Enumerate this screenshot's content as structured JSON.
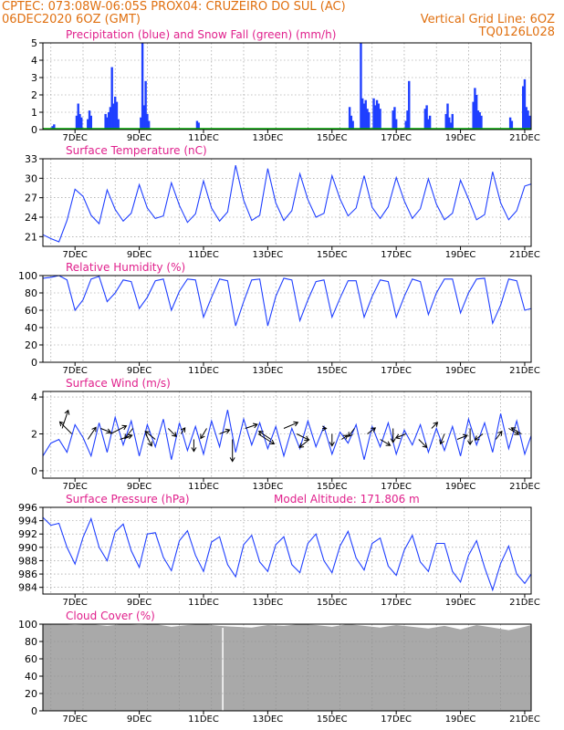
{
  "header": {
    "line1_left": "CPTEC:   073:08W-06:05S   PROX04: CRUZEIRO DO SUL (AC)",
    "line2_left": "06DEC2020 6OZ (GMT)",
    "line2_right": "Vertical Grid Line: 6OZ",
    "line3_right": "TQ0126L028"
  },
  "colors": {
    "series": "#1f3fff",
    "snow": "#00b000",
    "title": "#e0208c",
    "header": "#e07010",
    "cloud": "#a9a9a9",
    "grid": "#8c8c8c"
  },
  "x_ticks": [
    "7DEC",
    "9DEC",
    "11DEC",
    "13DEC",
    "15DEC",
    "17DEC",
    "19DEC",
    "21DEC"
  ],
  "chart_data": [
    {
      "id": "precip",
      "type": "bar",
      "title": "Precipitation (blue) and Snow Fall (green) (mm/h)",
      "ylim": [
        0,
        5
      ],
      "yticks": [
        0,
        1,
        2,
        3,
        4,
        5
      ],
      "x_unit": "days since 06DEC2020 00Z",
      "series": [
        {
          "name": "Precipitation",
          "x": [
            0.3,
            0.35,
            1.05,
            1.1,
            1.15,
            1.2,
            1.4,
            1.45,
            1.5,
            1.95,
            2.0,
            2.05,
            2.1,
            2.15,
            2.2,
            2.25,
            2.3,
            2.35,
            3.05,
            3.1,
            3.15,
            3.2,
            3.25,
            3.3,
            4.8,
            4.85,
            9.55,
            9.6,
            9.65,
            9.9,
            9.95,
            10.0,
            10.05,
            10.1,
            10.15,
            10.3,
            10.35,
            10.4,
            10.45,
            10.5,
            10.9,
            10.95,
            11.0,
            11.3,
            11.35,
            11.4,
            11.9,
            11.95,
            12.0,
            12.05,
            12.55,
            12.6,
            12.65,
            12.7,
            12.75,
            13.4,
            13.45,
            13.5,
            13.55,
            13.6,
            13.65,
            14.55,
            14.6,
            14.95,
            15.0,
            15.05,
            15.1,
            15.15
          ],
          "y": [
            0.2,
            0.3,
            0.8,
            1.5,
            0.9,
            0.7,
            0.6,
            1.1,
            0.8,
            0.9,
            0.7,
            1.0,
            1.3,
            3.6,
            1.5,
            1.9,
            1.6,
            0.6,
            0.7,
            5.0,
            1.4,
            2.8,
            0.9,
            0.5,
            0.5,
            0.4,
            1.3,
            0.8,
            0.5,
            5.0,
            1.8,
            1.5,
            1.7,
            1.2,
            1.0,
            1.8,
            1.4,
            1.7,
            1.5,
            1.2,
            1.1,
            1.3,
            0.6,
            0.5,
            1.1,
            2.8,
            1.2,
            1.4,
            0.6,
            0.8,
            0.9,
            1.5,
            0.7,
            0.4,
            0.9,
            1.6,
            2.4,
            2.0,
            1.1,
            1.0,
            0.8,
            0.7,
            0.5,
            2.5,
            2.9,
            1.3,
            1.1,
            0.8
          ]
        },
        {
          "name": "Snow Fall",
          "x": [
            0,
            15.2
          ],
          "y": [
            0,
            0
          ]
        }
      ]
    },
    {
      "id": "temp",
      "type": "line",
      "title": "Surface Temperature (nC)",
      "ylim": [
        19.5,
        33
      ],
      "yticks": [
        21,
        24,
        27,
        30,
        33
      ],
      "x_unit": "days since 06DEC2020 00Z",
      "series": [
        {
          "name": "Surface Temperature",
          "x": [
            0,
            0.25,
            0.5,
            0.75,
            1.0,
            1.25,
            1.5,
            1.75,
            2.0,
            2.25,
            2.5,
            2.75,
            3.0,
            3.25,
            3.5,
            3.75,
            4.0,
            4.25,
            4.5,
            4.75,
            5.0,
            5.25,
            5.5,
            5.75,
            6.0,
            6.25,
            6.5,
            6.75,
            7.0,
            7.25,
            7.5,
            7.75,
            8.0,
            8.25,
            8.5,
            8.75,
            9.0,
            9.25,
            9.5,
            9.75,
            10.0,
            10.25,
            10.5,
            10.75,
            11.0,
            11.25,
            11.5,
            11.75,
            12.0,
            12.25,
            12.5,
            12.75,
            13.0,
            13.25,
            13.5,
            13.75,
            14.0,
            14.25,
            14.5,
            14.75,
            15.0,
            15.2
          ],
          "y": [
            21.3,
            20.7,
            20.2,
            23.5,
            28.3,
            27.2,
            24.3,
            23.0,
            28.2,
            25.2,
            23.4,
            24.6,
            29.0,
            25.4,
            23.8,
            24.2,
            29.3,
            25.8,
            23.2,
            24.5,
            29.6,
            25.4,
            23.4,
            24.8,
            32.0,
            26.6,
            23.5,
            24.3,
            31.5,
            26.2,
            23.5,
            25.0,
            30.7,
            26.7,
            24.0,
            24.6,
            30.4,
            26.8,
            24.2,
            25.4,
            30.4,
            25.5,
            23.8,
            25.6,
            30.1,
            26.5,
            23.8,
            25.3,
            29.9,
            26.0,
            23.6,
            24.6,
            29.7,
            26.8,
            23.6,
            24.4,
            31.0,
            26.2,
            23.6,
            25.0,
            28.8,
            29.1
          ]
        }
      ]
    },
    {
      "id": "rh",
      "type": "line",
      "title": "Relative Humidity (%)",
      "ylim": [
        0,
        100
      ],
      "yticks": [
        0,
        20,
        40,
        60,
        80,
        100
      ],
      "x_unit": "days since 06DEC2020 00Z",
      "series": [
        {
          "name": "Relative Humidity",
          "x": [
            0,
            0.25,
            0.5,
            0.75,
            1.0,
            1.25,
            1.5,
            1.75,
            2.0,
            2.25,
            2.5,
            2.75,
            3.0,
            3.25,
            3.5,
            3.75,
            4.0,
            4.25,
            4.5,
            4.75,
            5.0,
            5.25,
            5.5,
            5.75,
            6.0,
            6.25,
            6.5,
            6.75,
            7.0,
            7.25,
            7.5,
            7.75,
            8.0,
            8.25,
            8.5,
            8.75,
            9.0,
            9.25,
            9.5,
            9.75,
            10.0,
            10.25,
            10.5,
            10.75,
            11.0,
            11.25,
            11.5,
            11.75,
            12.0,
            12.25,
            12.5,
            12.75,
            13.0,
            13.25,
            13.5,
            13.75,
            14.0,
            14.25,
            14.5,
            14.75,
            15.0,
            15.2
          ],
          "y": [
            97,
            98,
            100,
            95,
            60,
            72,
            96,
            99,
            70,
            80,
            95,
            93,
            62,
            75,
            94,
            96,
            60,
            82,
            96,
            95,
            52,
            75,
            96,
            94,
            42,
            70,
            95,
            96,
            42,
            76,
            97,
            95,
            48,
            72,
            93,
            95,
            52,
            74,
            94,
            94,
            52,
            76,
            95,
            93,
            52,
            76,
            96,
            93,
            55,
            80,
            96,
            96,
            57,
            80,
            96,
            97,
            45,
            66,
            96,
            94,
            60,
            62
          ]
        }
      ]
    },
    {
      "id": "wind",
      "type": "line",
      "title": "Surface Wind (m/s)",
      "ylim": [
        -0.4,
        4.3
      ],
      "yticks": [
        0,
        2,
        4
      ],
      "x_unit": "days since 06DEC2020 00Z",
      "series": [
        {
          "name": "Surface Wind",
          "x": [
            0,
            0.25,
            0.5,
            0.75,
            1.0,
            1.25,
            1.5,
            1.75,
            2.0,
            2.25,
            2.5,
            2.75,
            3.0,
            3.25,
            3.5,
            3.75,
            4.0,
            4.25,
            4.5,
            4.75,
            5.0,
            5.25,
            5.5,
            5.75,
            6.0,
            6.25,
            6.5,
            6.75,
            7.0,
            7.25,
            7.5,
            7.75,
            8.0,
            8.25,
            8.5,
            8.75,
            9.0,
            9.25,
            9.5,
            9.75,
            10.0,
            10.25,
            10.5,
            10.75,
            11.0,
            11.25,
            11.5,
            11.75,
            12.0,
            12.25,
            12.5,
            12.75,
            13.0,
            13.25,
            13.5,
            13.75,
            14.0,
            14.25,
            14.5,
            14.75,
            15.0,
            15.2
          ],
          "y": [
            0.8,
            1.5,
            1.7,
            1.0,
            2.5,
            1.8,
            0.8,
            2.6,
            1.0,
            2.9,
            1.4,
            2.7,
            0.8,
            2.5,
            1.3,
            2.8,
            0.6,
            2.6,
            1.1,
            2.4,
            0.9,
            2.7,
            1.3,
            3.3,
            1.0,
            2.8,
            1.4,
            2.6,
            1.2,
            2.4,
            0.8,
            2.3,
            1.2,
            2.7,
            1.3,
            2.4,
            0.9,
            2.1,
            1.5,
            2.5,
            0.6,
            2.4,
            1.3,
            2.6,
            0.9,
            2.2,
            1.4,
            2.5,
            1.0,
            2.3,
            1.1,
            2.4,
            0.8,
            2.8,
            1.4,
            2.6,
            1.0,
            3.1,
            1.2,
            2.7,
            0.9,
            1.9
          ]
        },
        {
          "name": "Wind vectors",
          "x": [
            0.6,
            0.9,
            1.4,
            1.8,
            2.1,
            2.4,
            2.8,
            3.2,
            3.5,
            3.9,
            4.3,
            4.7,
            5.1,
            5.5,
            5.9,
            6.3,
            6.7,
            7.1,
            7.5,
            7.9,
            8.3,
            8.7,
            9.0,
            9.3,
            9.7,
            10.1,
            10.5,
            10.9,
            11.3,
            11.7,
            12.1,
            12.5,
            12.9,
            13.3,
            13.7,
            14.1,
            14.5,
            14.9
          ],
          "u": [
            0.3,
            -0.6,
            0.4,
            0.5,
            0.8,
            0.6,
            -0.4,
            0.3,
            -0.5,
            0.4,
            0.2,
            0.0,
            -0.3,
            0.5,
            0.0,
            0.6,
            0.8,
            -0.6,
            0.7,
            0.6,
            -0.5,
            0.2,
            0.0,
            0.3,
            -0.3,
            0.4,
            0.5,
            0.0,
            -0.5,
            0.4,
            0.3,
            -0.2,
            0.5,
            0.0,
            -0.4,
            0.3,
            0.5,
            -0.5
          ],
          "v": [
            0.9,
            0.6,
            0.6,
            -0.2,
            0.4,
            0.2,
            -0.5,
            -0.6,
            0.4,
            -0.4,
            0.3,
            -0.6,
            -0.5,
            0.2,
            -1.1,
            0.2,
            -0.5,
            0.4,
            0.3,
            -0.3,
            -0.4,
            0.0,
            -0.6,
            0.2,
            -0.4,
            0.3,
            -0.3,
            -0.7,
            -0.2,
            -0.4,
            0.3,
            -0.5,
            0.2,
            -0.8,
            -0.3,
            0.4,
            -0.3,
            0.3
          ]
        }
      ]
    },
    {
      "id": "pressure",
      "type": "line",
      "title": "Surface Pressure (hPa)",
      "annotation": "Model Altitude: 171.806 m",
      "ylim": [
        983,
        996
      ],
      "yticks": [
        984,
        986,
        988,
        990,
        992,
        994,
        996
      ],
      "x_unit": "days since 06DEC2020 00Z",
      "series": [
        {
          "name": "Surface Pressure",
          "x": [
            0,
            0.25,
            0.5,
            0.75,
            1.0,
            1.25,
            1.5,
            1.75,
            2.0,
            2.25,
            2.5,
            2.75,
            3.0,
            3.25,
            3.5,
            3.75,
            4.0,
            4.25,
            4.5,
            4.75,
            5.0,
            5.25,
            5.5,
            5.75,
            6.0,
            6.25,
            6.5,
            6.75,
            7.0,
            7.25,
            7.5,
            7.75,
            8.0,
            8.25,
            8.5,
            8.75,
            9.0,
            9.25,
            9.5,
            9.75,
            10.0,
            10.25,
            10.5,
            10.75,
            11.0,
            11.25,
            11.5,
            11.75,
            12.0,
            12.25,
            12.5,
            12.75,
            13.0,
            13.25,
            13.5,
            13.75,
            14.0,
            14.25,
            14.5,
            14.75,
            15.0,
            15.2
          ],
          "y": [
            994.5,
            993.3,
            993.6,
            990.0,
            987.5,
            991.5,
            994.3,
            990.0,
            988.0,
            992.3,
            993.5,
            989.5,
            987.0,
            992.0,
            992.2,
            988.5,
            986.5,
            991.0,
            992.5,
            988.8,
            986.4,
            990.8,
            991.6,
            987.4,
            985.6,
            990.4,
            991.8,
            987.8,
            986.4,
            990.4,
            991.6,
            987.4,
            986.2,
            990.6,
            992.0,
            988.0,
            986.2,
            990.2,
            992.4,
            988.4,
            986.6,
            990.6,
            991.4,
            987.2,
            985.8,
            989.6,
            991.8,
            987.8,
            986.4,
            990.6,
            990.6,
            986.4,
            984.8,
            988.8,
            991.0,
            987.0,
            983.6,
            987.6,
            990.2,
            986.0,
            984.6,
            986.0
          ]
        }
      ]
    },
    {
      "id": "cloud",
      "type": "area",
      "title": "Cloud Cover (%)",
      "ylim": [
        0,
        100
      ],
      "yticks": [
        0,
        20,
        40,
        60,
        80,
        100
      ],
      "x_unit": "days since 06DEC2020 00Z",
      "series": [
        {
          "name": "Cloud Cover",
          "x": [
            0,
            0.5,
            1.0,
            1.5,
            2.0,
            2.5,
            3.0,
            3.5,
            4.0,
            4.5,
            5.0,
            5.5,
            6.0,
            6.5,
            7.0,
            7.5,
            8.0,
            8.5,
            9.0,
            9.5,
            10.0,
            10.5,
            11.0,
            11.5,
            12.0,
            12.5,
            13.0,
            13.5,
            14.0,
            14.5,
            15.0,
            15.2
          ],
          "y": [
            100,
            100,
            99,
            100,
            98,
            100,
            99,
            100,
            97,
            99,
            100,
            98,
            97,
            96,
            99,
            98,
            100,
            99,
            97,
            100,
            98,
            96,
            99,
            97,
            95,
            98,
            94,
            99,
            96,
            93,
            97,
            99
          ]
        }
      ]
    }
  ]
}
